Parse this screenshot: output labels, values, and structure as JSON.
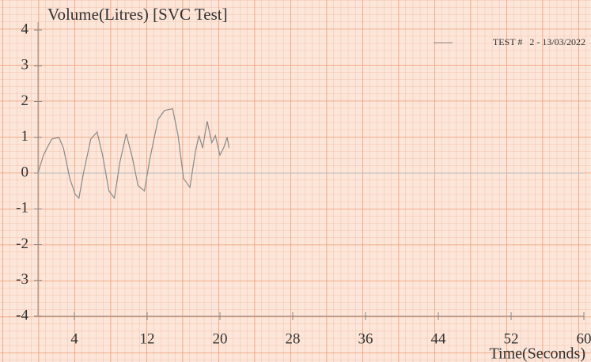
{
  "chart_data": {
    "type": "line",
    "title": "Volume(Litres)  [SVC Test]",
    "x_label": "Time(Seconds)",
    "x": [
      0,
      0.6,
      1.5,
      2.3,
      2.8,
      3.5,
      4.1,
      4.5,
      5,
      5.8,
      6.5,
      7.1,
      7.8,
      8.4,
      9,
      9.7,
      10.4,
      11,
      11.7,
      12.3,
      13.2,
      13.9,
      14.8,
      15.4,
      16,
      16.7,
      17.3,
      17.7,
      18.1,
      18.6,
      19.1,
      19.5,
      20,
      20.4,
      20.8,
      21
    ],
    "series": [
      {
        "name": "TEST #   2 - 13/03/2022",
        "color": "#8a8a8a",
        "values": [
          0,
          0.5,
          0.95,
          1.0,
          0.7,
          -0.15,
          -0.6,
          -0.7,
          0,
          0.95,
          1.15,
          0.5,
          -0.5,
          -0.7,
          0.3,
          1.1,
          0.4,
          -0.35,
          -0.5,
          0.4,
          1.5,
          1.75,
          1.8,
          1.05,
          -0.15,
          -0.4,
          0.6,
          1.05,
          0.7,
          1.45,
          0.85,
          1.05,
          0.5,
          0.7,
          1.0,
          0.7
        ]
      }
    ],
    "xlim": [
      0,
      60
    ],
    "xticks": [
      4,
      12,
      20,
      28,
      36,
      44,
      52,
      60
    ],
    "ylim": [
      -4,
      4
    ],
    "yticks": [
      -4,
      -3,
      -2,
      -1,
      0,
      1,
      2,
      3,
      4
    ],
    "legend": "top-right"
  }
}
